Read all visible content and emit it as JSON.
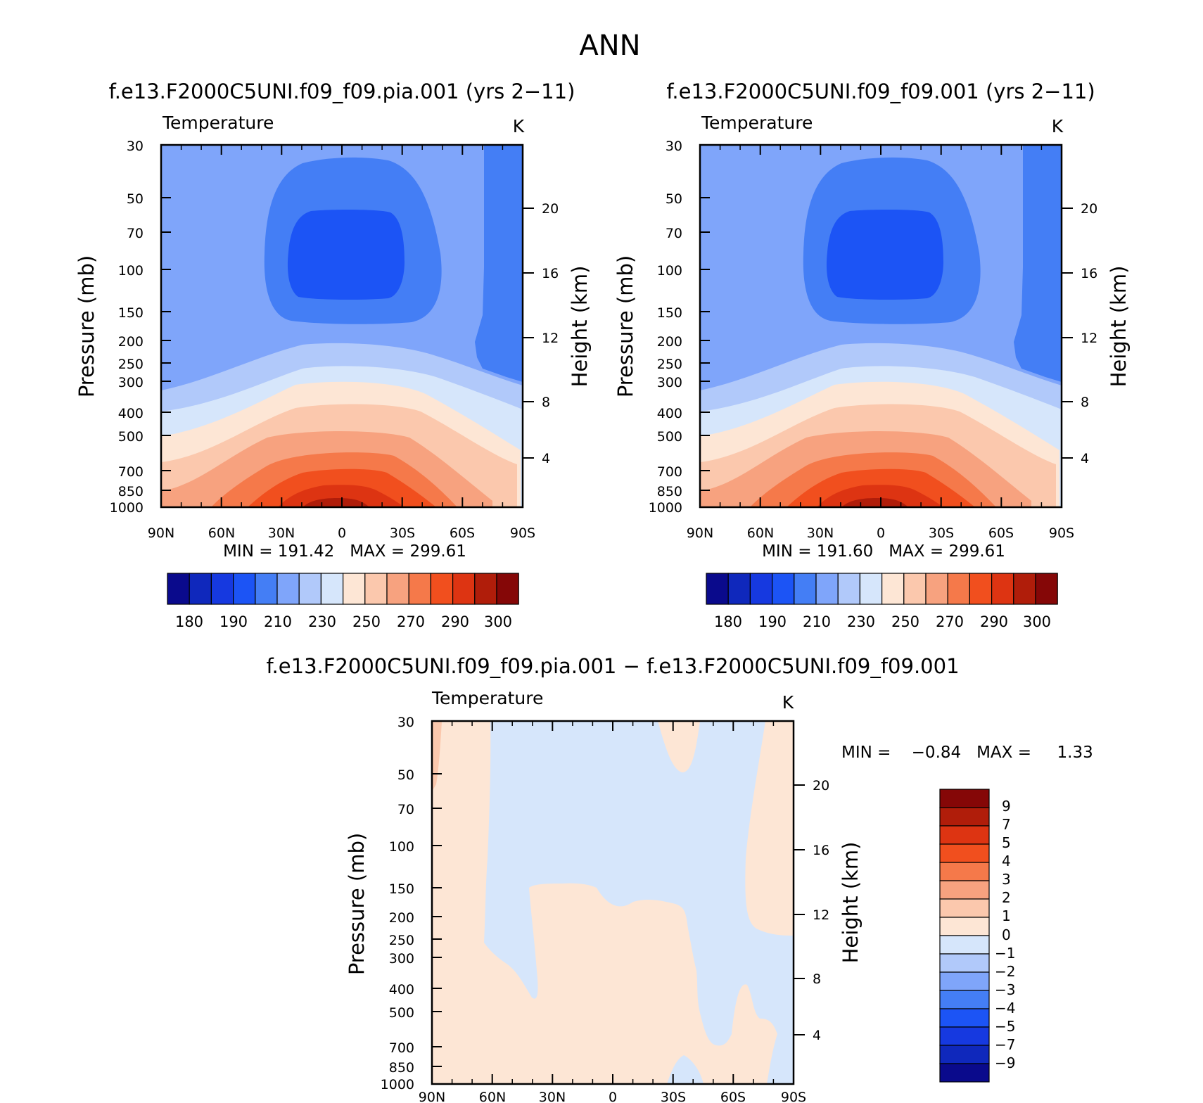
{
  "page_title": "ANN",
  "top_left": {
    "title": "f.e13.F2000C5UNI.f09_f09.pia.001 (yrs 2−11)",
    "var_label": "Temperature",
    "units": "K",
    "stats": "MIN = 191.42   MAX = 299.61"
  },
  "top_right": {
    "title": "f.e13.F2000C5UNI.f09_f09.001 (yrs 2−11)",
    "var_label": "Temperature",
    "units": "K",
    "stats": "MIN = 191.60   MAX = 299.61"
  },
  "bottom": {
    "title": "f.e13.F2000C5UNI.f09_f09.pia.001 − f.e13.F2000C5UNI.f09_f09.001",
    "var_label": "Temperature",
    "units": "K",
    "stats": "MIN =    −0.84   MAX =     1.33"
  },
  "axis_labels": {
    "left": "Pressure (mb)",
    "right": "Height (km)"
  },
  "colors": {
    "temperature_palette": [
      "#0a0a8c",
      "#0f28bc",
      "#1639e0",
      "#1c54f5",
      "#447ef5",
      "#7fa5fa",
      "#b1c9fa",
      "#d6e6fb",
      "#fde6d5",
      "#fbc8ad",
      "#f7a27f",
      "#f5794a",
      "#f14f1e",
      "#dd3412",
      "#b01d0a",
      "#850707"
    ],
    "difference_palette": [
      "#0a0a8c",
      "#0f28bc",
      "#1639e0",
      "#1c54f5",
      "#447ef5",
      "#7fa5fa",
      "#b1c9fa",
      "#d6e6fb",
      "#fde6d5",
      "#fbc8ad",
      "#f7a27f",
      "#f5794a",
      "#f14f1e",
      "#dd3412",
      "#b01d0a",
      "#850707"
    ]
  },
  "chart_data": [
    {
      "type": "heatmap",
      "title": "f.e13.F2000C5UNI.f09_f09.pia.001 (yrs 2−11)",
      "variable": "Temperature",
      "units": "K",
      "xlabel": "",
      "ylabel": "Pressure (mb)",
      "y2label": "Height (km)",
      "x_ticks": [
        "90N",
        "60N",
        "30N",
        "0",
        "30S",
        "60S",
        "90S"
      ],
      "y_ticks": [
        30,
        50,
        70,
        100,
        150,
        200,
        250,
        300,
        400,
        500,
        700,
        850,
        1000
      ],
      "y_scale": "log",
      "ylim": [
        1000,
        30
      ],
      "y2_ticks": [
        4,
        8,
        12,
        16,
        20
      ],
      "min": 191.42,
      "max": 299.61,
      "colorbar_levels": [
        180,
        190,
        200,
        210,
        220,
        230,
        240,
        250,
        260,
        270,
        280,
        290,
        295,
        300,
        305
      ],
      "colorbar_labels": [
        "180",
        "190",
        "210",
        "230",
        "250",
        "270",
        "290",
        "300"
      ]
    },
    {
      "type": "heatmap",
      "title": "f.e13.F2000C5UNI.f09_f09.001 (yrs 2−11)",
      "variable": "Temperature",
      "units": "K",
      "xlabel": "",
      "ylabel": "Pressure (mb)",
      "y2label": "Height (km)",
      "x_ticks": [
        "90N",
        "60N",
        "30N",
        "0",
        "30S",
        "60S",
        "90S"
      ],
      "y_ticks": [
        30,
        50,
        70,
        100,
        150,
        200,
        250,
        300,
        400,
        500,
        700,
        850,
        1000
      ],
      "y_scale": "log",
      "ylim": [
        1000,
        30
      ],
      "y2_ticks": [
        4,
        8,
        12,
        16,
        20
      ],
      "min": 191.6,
      "max": 299.61,
      "colorbar_levels": [
        180,
        190,
        200,
        210,
        220,
        230,
        240,
        250,
        260,
        270,
        280,
        290,
        295,
        300,
        305
      ],
      "colorbar_labels": [
        "180",
        "190",
        "210",
        "230",
        "250",
        "270",
        "290",
        "300"
      ]
    },
    {
      "type": "heatmap",
      "title": "f.e13.F2000C5UNI.f09_f09.pia.001 − f.e13.F2000C5UNI.f09_f09.001",
      "variable": "Temperature",
      "units": "K",
      "xlabel": "",
      "ylabel": "Pressure (mb)",
      "y2label": "Height (km)",
      "x_ticks": [
        "90N",
        "60N",
        "30N",
        "0",
        "30S",
        "60S",
        "90S"
      ],
      "y_ticks": [
        30,
        50,
        70,
        100,
        150,
        200,
        250,
        300,
        400,
        500,
        700,
        850,
        1000
      ],
      "y_scale": "log",
      "ylim": [
        1000,
        30
      ],
      "y2_ticks": [
        4,
        8,
        12,
        16,
        20
      ],
      "min": -0.84,
      "max": 1.33,
      "colorbar_levels": [
        -9,
        -7,
        -5,
        -4,
        -3,
        -2,
        -1,
        0,
        1,
        2,
        3,
        4,
        5,
        7,
        9
      ],
      "colorbar_labels": [
        "9",
        "7",
        "5",
        "4",
        "3",
        "2",
        "1",
        "0",
        "−1",
        "−2",
        "−3",
        "−4",
        "−5",
        "−7",
        "−9"
      ]
    }
  ]
}
